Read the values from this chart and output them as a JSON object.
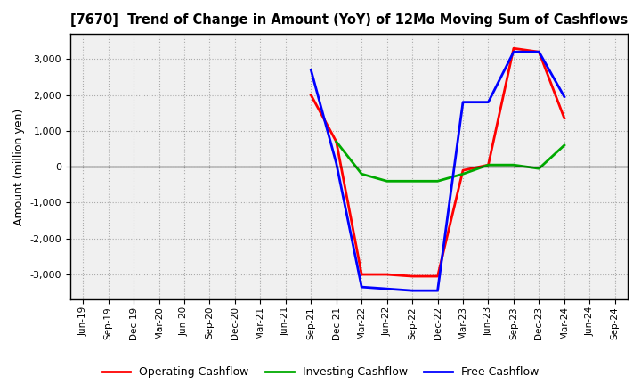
{
  "title": "[7670]  Trend of Change in Amount (YoY) of 12Mo Moving Sum of Cashflows",
  "ylabel": "Amount (million yen)",
  "background_color": "#ffffff",
  "plot_bg_color": "#f0f0f0",
  "grid_color": "#999999",
  "x_labels": [
    "Jun-19",
    "Sep-19",
    "Dec-19",
    "Mar-20",
    "Jun-20",
    "Sep-20",
    "Dec-20",
    "Mar-21",
    "Jun-21",
    "Sep-21",
    "Dec-21",
    "Mar-22",
    "Jun-22",
    "Sep-22",
    "Dec-22",
    "Mar-23",
    "Jun-23",
    "Sep-23",
    "Dec-23",
    "Mar-24",
    "Jun-24",
    "Sep-24"
  ],
  "operating_cashflow": [
    null,
    null,
    null,
    null,
    null,
    null,
    null,
    null,
    null,
    2000,
    700,
    -3000,
    -3000,
    -3050,
    -3050,
    -100,
    50,
    3300,
    3200,
    1350,
    null,
    null
  ],
  "investing_cashflow": [
    null,
    null,
    null,
    null,
    null,
    null,
    null,
    null,
    null,
    null,
    700,
    -200,
    -400,
    -400,
    -400,
    -200,
    50,
    50,
    -50,
    600,
    null,
    null
  ],
  "free_cashflow": [
    null,
    null,
    null,
    null,
    null,
    null,
    null,
    null,
    null,
    2700,
    100,
    -3350,
    -3400,
    -3450,
    -3450,
    1800,
    1800,
    3200,
    3200,
    1950,
    null,
    null
  ],
  "ylim": [
    -3700,
    3700
  ],
  "yticks": [
    -3000,
    -2000,
    -1000,
    0,
    1000,
    2000,
    3000
  ],
  "operating_color": "#ff0000",
  "investing_color": "#00aa00",
  "free_color": "#0000ff",
  "line_width": 2.0
}
